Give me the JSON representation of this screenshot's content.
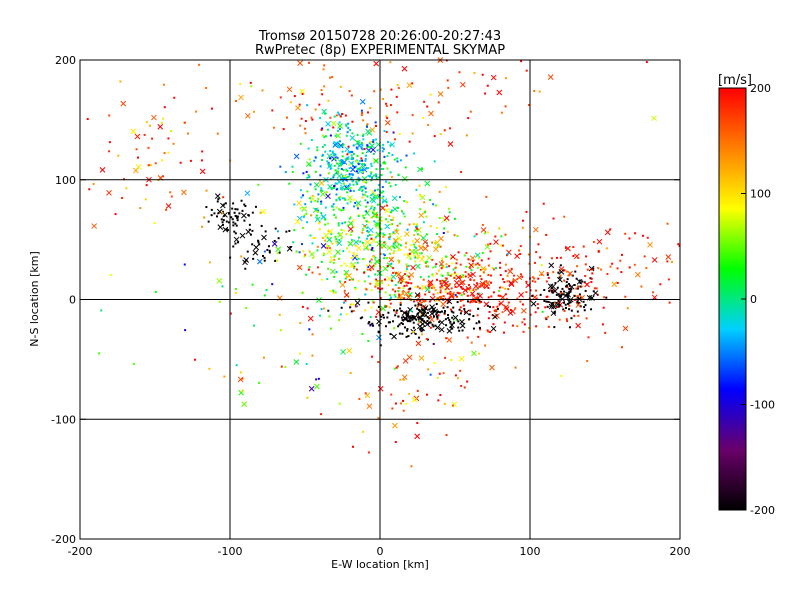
{
  "chart_data": {
    "type": "scatter",
    "title": "Tromsø 20150728 20:26:00-20:27:43",
    "subtitle": "RwPretec (8p) EXPERIMENTAL SKYMAP",
    "xlabel": "E-W location [km]",
    "ylabel": "N-S location [km]",
    "xlim": [
      -200,
      200
    ],
    "ylim": [
      -200,
      200
    ],
    "xticks": [
      "-200",
      "-100",
      "0",
      "100",
      "200"
    ],
    "yticks": [
      "-200",
      "-100",
      "0",
      "100",
      "200"
    ],
    "grid": true,
    "markers": [
      "dot",
      "x"
    ],
    "colorbar": {
      "label": "[m/s]",
      "range": [
        -200,
        200
      ],
      "ticks": [
        "-200",
        "-100",
        "0",
        "100",
        "200"
      ],
      "colors": [
        "#000000",
        "#6a006a",
        "#0000ff",
        "#00d0ff",
        "#00ff00",
        "#ffff00",
        "#ff8000",
        "#ff0000"
      ]
    },
    "clusters": [
      {
        "cx": -20,
        "cy": 110,
        "sx": 15,
        "sy": 20,
        "n": 380,
        "v": -20,
        "vs": 35
      },
      {
        "cx": -10,
        "cy": 60,
        "sx": 25,
        "sy": 25,
        "n": 320,
        "v": 40,
        "vs": 50
      },
      {
        "cx": 20,
        "cy": 30,
        "sx": 30,
        "sy": 20,
        "n": 280,
        "v": 90,
        "vs": 60
      },
      {
        "cx": 60,
        "cy": 5,
        "sx": 40,
        "sy": 15,
        "n": 320,
        "v": 190,
        "vs": 20
      },
      {
        "cx": 30,
        "cy": -15,
        "sx": 20,
        "sy": 8,
        "n": 200,
        "v": -200,
        "vs": 5
      },
      {
        "cx": 125,
        "cy": 5,
        "sx": 10,
        "sy": 10,
        "n": 120,
        "v": -200,
        "vs": 5
      },
      {
        "cx": -98,
        "cy": 70,
        "sx": 8,
        "sy": 8,
        "n": 60,
        "v": -200,
        "vs": 5
      },
      {
        "cx": -80,
        "cy": 45,
        "sx": 10,
        "sy": 8,
        "n": 40,
        "v": -200,
        "vs": 5
      },
      {
        "cx": -160,
        "cy": 120,
        "sx": 30,
        "sy": 30,
        "n": 80,
        "v": 170,
        "vs": 45
      },
      {
        "cx": 0,
        "cy": 170,
        "sx": 60,
        "sy": 25,
        "n": 150,
        "v": 170,
        "vs": 40
      },
      {
        "cx": 130,
        "cy": 20,
        "sx": 50,
        "sy": 25,
        "n": 160,
        "v": 180,
        "vs": 30
      },
      {
        "cx": 20,
        "cy": -70,
        "sx": 25,
        "sy": 25,
        "n": 60,
        "v": 170,
        "vs": 40
      },
      {
        "cx": -30,
        "cy": 0,
        "sx": 60,
        "sy": 40,
        "n": 150,
        "v": 60,
        "vs": 90
      }
    ]
  }
}
